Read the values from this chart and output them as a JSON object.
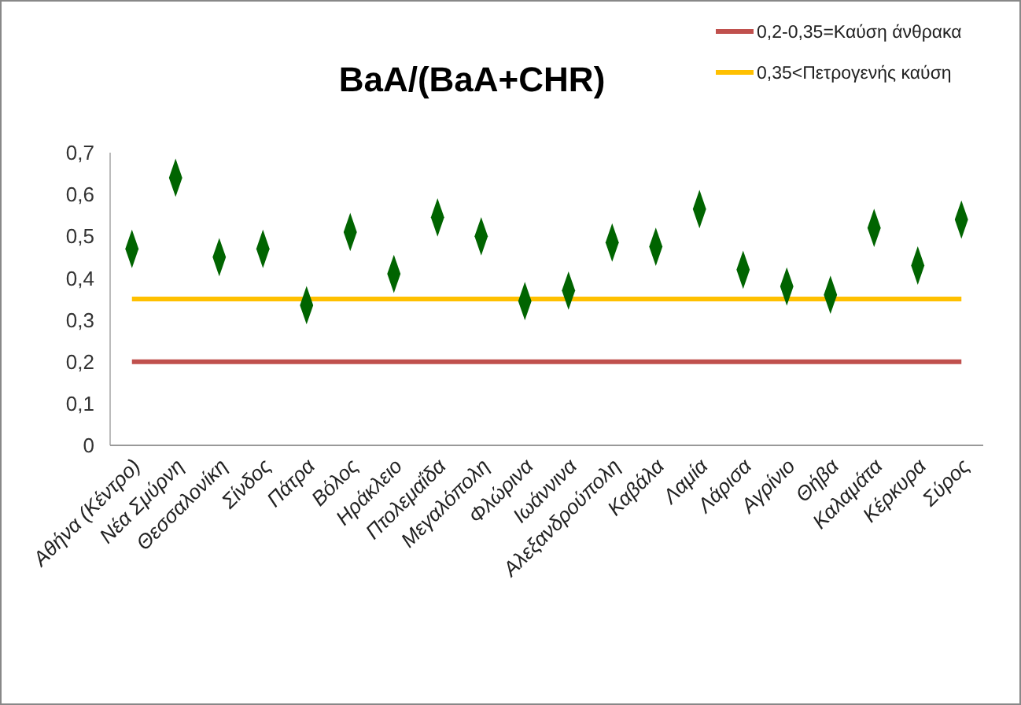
{
  "chart_data": {
    "type": "scatter",
    "title": "BaA/(BaA+CHR)",
    "categories": [
      "Αθήνα (Κέντρο)",
      "Νέα Σμύρνη",
      "Θεσσαλονίκη",
      "Σίνδος",
      "Πάτρα",
      "Βόλος",
      "Ηράκλειο",
      "Πτολεμαΐδα",
      "Μεγαλόπολη",
      "Φλώρινα",
      "Ιωάννινα",
      "Αλεξανδρούπολη",
      "Καβάλα",
      "Λαμία",
      "Λάρισα",
      "Αγρίνιο",
      "Θήβα",
      "Καλαμάτα",
      "Κέρκυρα",
      "Σύρος"
    ],
    "series": [
      {
        "color": "#006400",
        "marker": "diamond",
        "values": [
          0.47,
          0.64,
          0.45,
          0.47,
          0.335,
          0.51,
          0.41,
          0.545,
          0.5,
          0.345,
          0.37,
          0.485,
          0.475,
          0.565,
          0.42,
          0.38,
          0.36,
          0.52,
          0.43,
          0.54
        ]
      },
      {
        "type": "line",
        "name": "0,2-0,35=Καύση άνθρακα",
        "color": "#c0504d",
        "values": [
          0.2,
          0.2,
          0.2,
          0.2,
          0.2,
          0.2,
          0.2,
          0.2,
          0.2,
          0.2,
          0.2,
          0.2,
          0.2,
          0.2,
          0.2,
          0.2,
          0.2,
          0.2,
          0.2,
          0.2
        ]
      },
      {
        "type": "line",
        "name": "0,35<Πετρογενής καύση",
        "color": "#ffc000",
        "values": [
          0.35,
          0.35,
          0.35,
          0.35,
          0.35,
          0.35,
          0.35,
          0.35,
          0.35,
          0.35,
          0.35,
          0.35,
          0.35,
          0.35,
          0.35,
          0.35,
          0.35,
          0.35,
          0.35,
          0.35
        ]
      }
    ],
    "ylim": [
      0,
      0.7
    ],
    "yticks": [
      0,
      {
        "value": 0.1,
        "label": "0,1"
      },
      {
        "value": 0.2,
        "label": "0,2"
      },
      {
        "value": 0.3,
        "label": "0,3"
      },
      {
        "value": 0.4,
        "label": "0,4"
      },
      {
        "value": 0.5,
        "label": "0,5"
      },
      {
        "value": 0.6,
        "label": "0,6"
      },
      {
        "value": 0.7,
        "label": "0,7"
      }
    ],
    "legend": "top right"
  }
}
